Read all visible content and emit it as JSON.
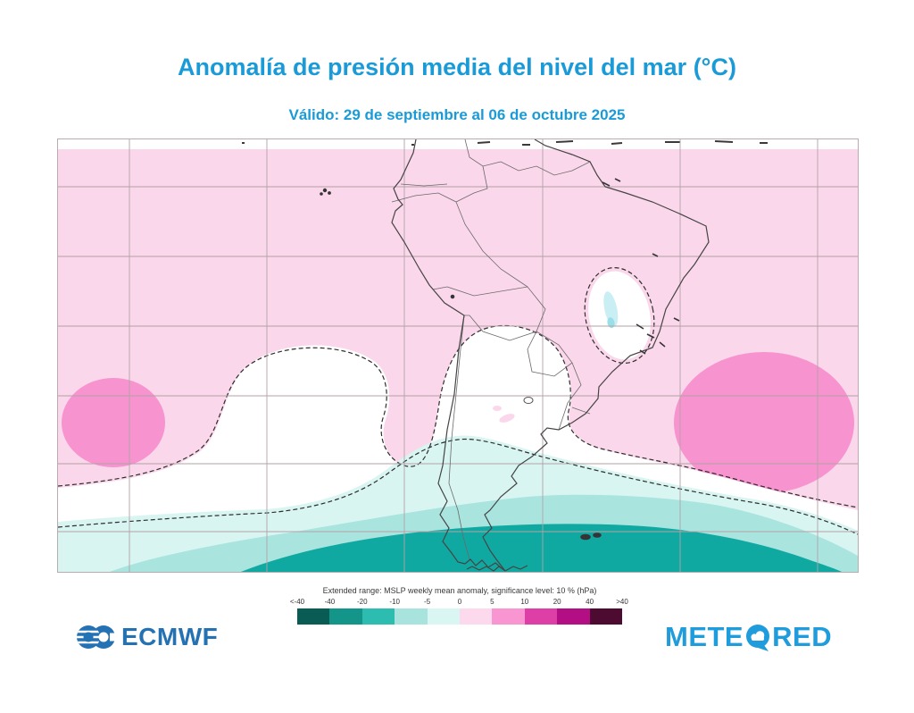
{
  "header": {
    "title": "Anomalía de presión media del nivel del mar (°C)",
    "subtitle": "Válido: 29 de septiembre al 06 de octubre 2025",
    "accent_color": "#1a9bd7"
  },
  "map": {
    "region": "South America",
    "positive_anomaly_color": "#fbd7eb",
    "positive_strong_color": "#f793ce",
    "negative_weak_color": "#d8f5f2",
    "negative_mid_color": "#a9e4df",
    "negative_strong_color": "#10a9a2",
    "nonsignificant_color": "#ffffff"
  },
  "legend": {
    "caption": "Extended range: MSLP weekly mean anomaly, significance level: 10 % (hPa)",
    "ticks": [
      "<-40",
      "-40",
      "-20",
      "-10",
      "-5",
      "0",
      "5",
      "10",
      "20",
      "40",
      ">40"
    ],
    "colors": [
      "#085c54",
      "#149589",
      "#2cbcb0",
      "#a8e3de",
      "#d9f6f3",
      "#fcd9ec",
      "#f996d1",
      "#de3fa6",
      "#b30e83",
      "#4d0b31"
    ]
  },
  "branding": {
    "ecmwf_label": "ECMWF",
    "meteored_left": "METE",
    "meteored_right": "RED",
    "ecmwf_color": "#2471b3",
    "meteored_color": "#1f9cdc"
  }
}
